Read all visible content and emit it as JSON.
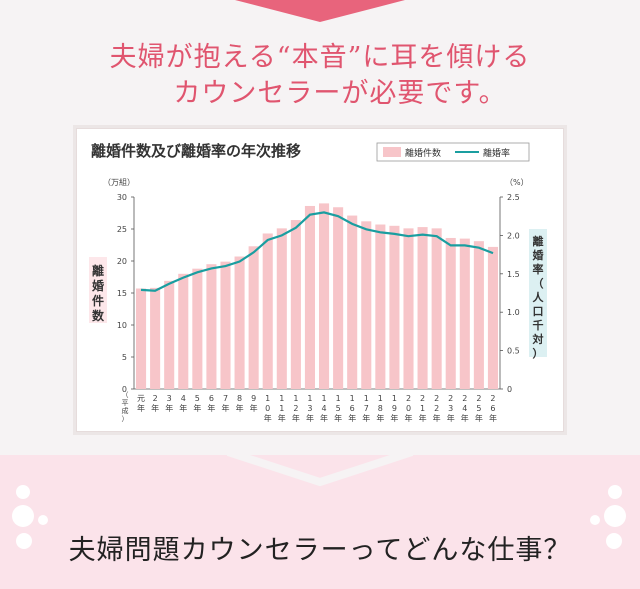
{
  "headline": {
    "line1": "夫婦が抱える“本音”に耳を傾ける",
    "line2": "カウンセラーが必要です。"
  },
  "footer": {
    "title": "夫婦問題カウンセラーってどんな仕事？"
  },
  "colors": {
    "accent": "#e0556f",
    "bar": "#f7c5c9",
    "line": "#1a9ea0",
    "band": "#fbe3ea"
  },
  "chart_data": {
    "type": "bar",
    "title": "離婚件数及び離婚率の年次推移",
    "legend": [
      "離婚件数",
      "離婚率"
    ],
    "legend_position": "top-right",
    "categories": [
      "元年",
      "2年",
      "3年",
      "4年",
      "5年",
      "6年",
      "7年",
      "8年",
      "9年",
      "10年",
      "11年",
      "12年",
      "13年",
      "14年",
      "15年",
      "16年",
      "17年",
      "18年",
      "19年",
      "20年",
      "21年",
      "22年",
      "23年",
      "24年",
      "25年",
      "26年"
    ],
    "era_label": "（平成）",
    "left_axis": {
      "unit": "（万組）",
      "label": "離婚件数",
      "ticks": [
        0,
        5,
        10,
        15,
        20,
        25,
        30
      ],
      "range": [
        0,
        30
      ]
    },
    "right_axis": {
      "unit": "（%）",
      "label": "離婚率（人口千対）",
      "ticks": [
        "0",
        "0.5",
        "1.0",
        "1.5",
        "2.0",
        "2.5"
      ],
      "range": [
        0,
        2.5
      ]
    },
    "series": [
      {
        "name": "離婚件数",
        "type": "bar",
        "values": [
          15.7,
          15.8,
          16.9,
          18.0,
          18.8,
          19.5,
          19.9,
          20.7,
          22.3,
          24.3,
          25.1,
          26.4,
          28.6,
          29.0,
          28.4,
          27.1,
          26.2,
          25.7,
          25.5,
          25.1,
          25.3,
          25.1,
          23.6,
          23.5,
          23.1,
          22.2
        ]
      },
      {
        "name": "離婚率",
        "type": "line",
        "values": [
          1.29,
          1.28,
          1.37,
          1.45,
          1.52,
          1.57,
          1.6,
          1.66,
          1.78,
          1.94,
          2.0,
          2.1,
          2.27,
          2.3,
          2.25,
          2.15,
          2.08,
          2.04,
          2.02,
          1.99,
          2.01,
          1.99,
          1.87,
          1.87,
          1.84,
          1.77
        ]
      }
    ]
  }
}
